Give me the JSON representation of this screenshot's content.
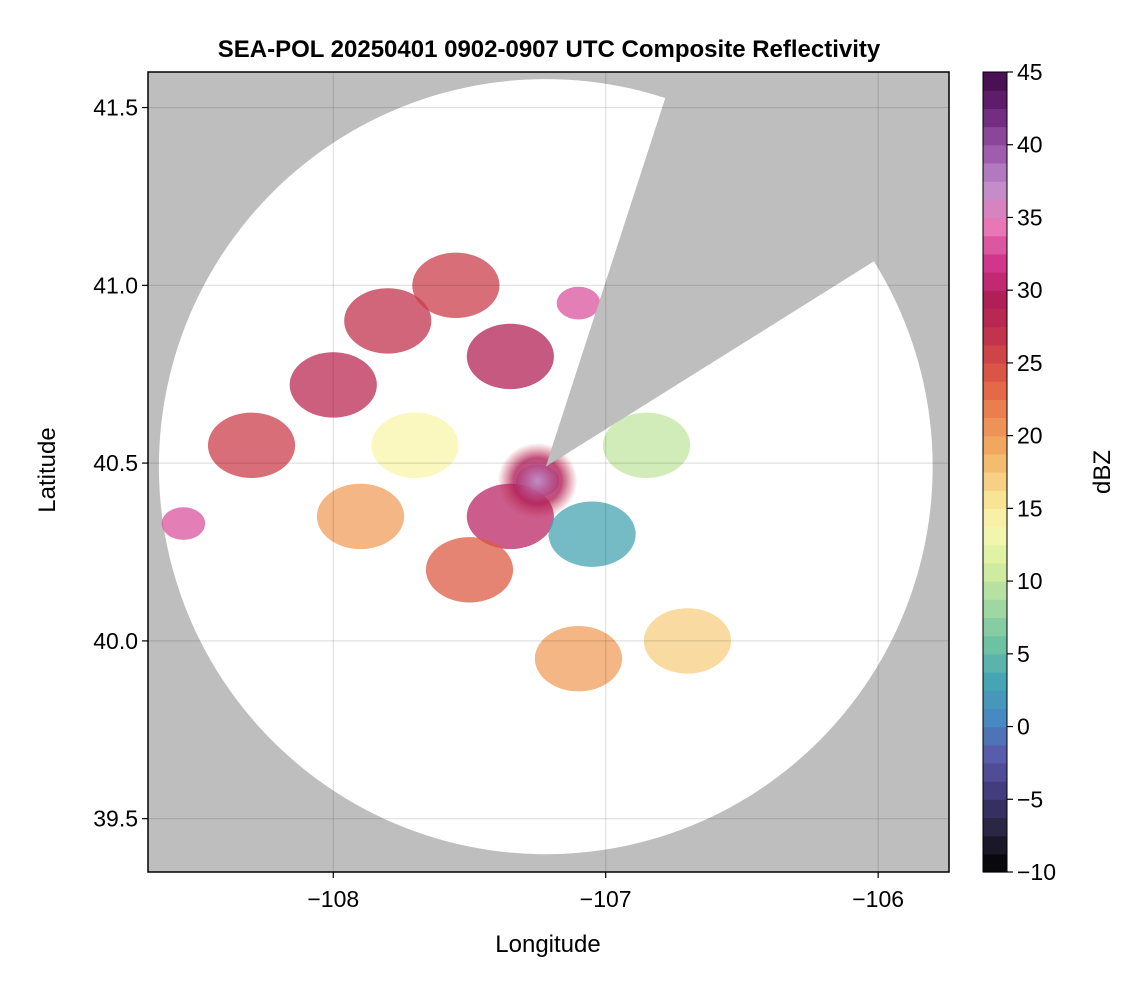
{
  "chart_data": {
    "type": "heatmap",
    "title": "SEA-POL 20250401 0902-0907 UTC Composite Reflectivity",
    "xlabel": "Longitude",
    "ylabel": "Latitude",
    "xlim": [
      -108.68,
      -105.74
    ],
    "ylim": [
      39.35,
      41.6
    ],
    "xticks": [
      -108,
      -107,
      -106
    ],
    "xtick_labels": [
      "−108",
      "−107",
      "−106"
    ],
    "yticks": [
      39.5,
      40.0,
      40.5,
      41.0,
      41.5
    ],
    "ytick_labels": [
      "39.5",
      "40.0",
      "40.5",
      "41.0",
      "41.5"
    ],
    "grid": true,
    "background_color": "#bebebe",
    "radar": {
      "center_lon": -107.22,
      "center_lat": 40.49,
      "max_range_deg_lon": 1.42,
      "max_range_deg_lat": 1.09,
      "blocked_sector_deg_from_north": [
        18,
        58
      ],
      "blocked_sector_color": "#bebebe",
      "no_echo_color": "#ffffff"
    },
    "echoes": [
      {
        "lon": -108.0,
        "lat": 40.72,
        "dbz": 28
      },
      {
        "lon": -107.8,
        "lat": 40.9,
        "dbz": 27
      },
      {
        "lon": -107.55,
        "lat": 41.0,
        "dbz": 26
      },
      {
        "lon": -108.3,
        "lat": 40.55,
        "dbz": 26
      },
      {
        "lon": -107.35,
        "lat": 40.8,
        "dbz": 29
      },
      {
        "lon": -107.25,
        "lat": 40.45,
        "dbz": 38
      },
      {
        "lon": -107.35,
        "lat": 40.35,
        "dbz": 30
      },
      {
        "lon": -107.5,
        "lat": 40.2,
        "dbz": 24
      },
      {
        "lon": -107.7,
        "lat": 40.55,
        "dbz": 14
      },
      {
        "lon": -107.9,
        "lat": 40.35,
        "dbz": 20
      },
      {
        "lon": -107.05,
        "lat": 40.3,
        "dbz": 3
      },
      {
        "lon": -106.85,
        "lat": 40.55,
        "dbz": 10
      },
      {
        "lon": -106.7,
        "lat": 40.0,
        "dbz": 17
      },
      {
        "lon": -107.1,
        "lat": 39.95,
        "dbz": 20
      },
      {
        "lon": -108.55,
        "lat": 40.33,
        "dbz": 33
      },
      {
        "lon": -107.1,
        "lat": 40.95,
        "dbz": 33
      }
    ],
    "colorbar": {
      "label": "dBZ",
      "range": [
        -10,
        45
      ],
      "ticks": [
        -10,
        -5,
        0,
        5,
        10,
        15,
        20,
        25,
        30,
        35,
        40,
        45
      ],
      "tick_labels": [
        "−10",
        "−5",
        "0",
        "5",
        "10",
        "15",
        "20",
        "25",
        "30",
        "35",
        "40",
        "45"
      ],
      "colormap": [
        "#000000",
        "#252238",
        "#3f3775",
        "#5a58a8",
        "#4688c2",
        "#46a5b2",
        "#6fc3a4",
        "#a3d9a3",
        "#d4ee9e",
        "#f8f8b0",
        "#f9dd8e",
        "#f2b063",
        "#ec8651",
        "#de5a45",
        "#c4354c",
        "#b01e57",
        "#d1368c",
        "#e87bb8",
        "#c08ecb",
        "#9956a8",
        "#6b2577",
        "#3f0a48"
      ]
    }
  }
}
